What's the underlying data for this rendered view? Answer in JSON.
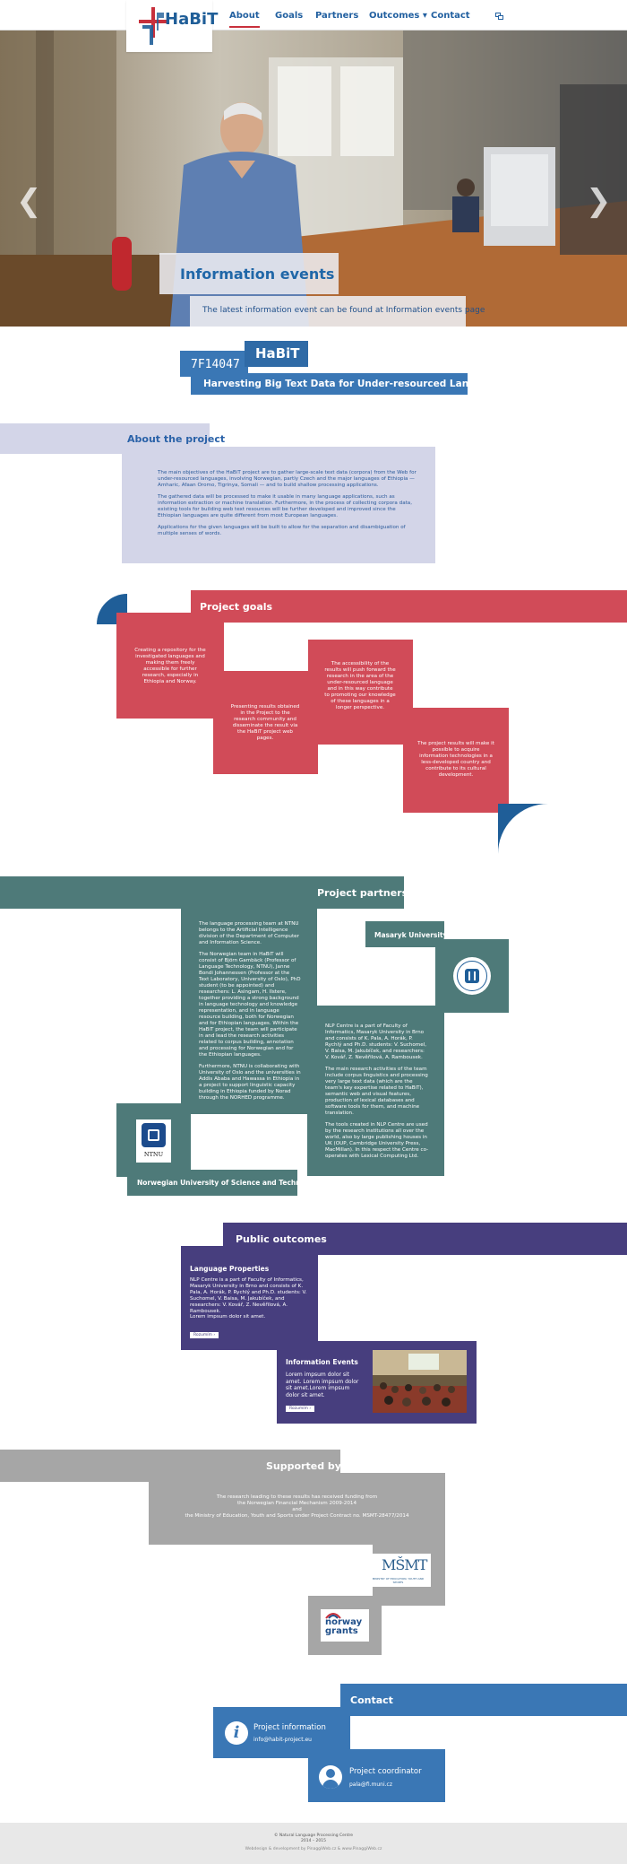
{
  "nav": {
    "brand": "HaBiT",
    "links": [
      "About",
      "Goals",
      "Partners",
      "Outcomes",
      "Contact"
    ],
    "caret": "▾",
    "lang_icon": "language-icon"
  },
  "hero": {
    "title": "Information events",
    "subtitle": "The latest information event can be found at Information events page",
    "prev": "❮",
    "next": "❯"
  },
  "project": {
    "code": "7F14047",
    "name": "HaBiT",
    "tagline": "Harvesting Big Text Data for Under-resourced Languages"
  },
  "about": {
    "heading": "About the project",
    "p1": "The main objectives of the HaBiT project are to gather large-scale text data (corpora) from the Web for under-resourced languages, involving Norwegian, partly Czech and the major languages of Ethiopia — Amharic, Afaan Oromo, Tigrinya, Somali — and to build shallow processing applications.",
    "p2": "The gathered data will be processed to make it usable in many language applications, such as information extraction or machine translation. Furthermore, in the process of collecting corpora data, existing tools for building web text resources will be further developed and improved since the Ethiopian languages are quite different from most European languages.",
    "p3": "Applications for the given languages will be built to allow for the separation and disambiguation of multiple senses of words."
  },
  "goals": {
    "heading": "Project goals",
    "g1": "Creating a repository for the investigated languages and making them freely accessible for further research, especially in Ethiopia and Norway.",
    "g2": "Presenting results obtained in the Project to the research community and disseminate the result via the HaBiT project web pages.",
    "g3": "The accessibility of the results will push forward the research in the area of the under-resourced language and in this way contribute to promoting our knowledge of these languages in a longer perspective.",
    "g4": "The project results will make it possible to acquire information technologies in a less-developed country and contribute to its cultural development."
  },
  "partners": {
    "heading": "Project partners",
    "ntnu_p1": "The language processing team at NTNU belongs to the Artificial Intelligence division of the Department of Computer and Information Science.",
    "ntnu_p2": "The Norwegian team in HaBiT will consist of Björn Gambäck (Professor of Language Technology, NTNU), Janne Bondi Johannessen (Professor at the Text Laboratory, University of Oslo), PhD student (to be appointed) and researchers: L. Asingam, H. Ilstere, together providing a strong background in language technology and knowledge representation, and in language resource building, both for Norwegian and for Ethiopian languages. Within the HaBiT project, the team will participate in and lead the research activities related to corpus building, annotation and processing for Norwegian and for the Ethiopian languages.",
    "ntnu_p3": "Furthermore, NTNU is collaborating with University of Oslo and the universities in Addis Ababa and Hawassa in Ethiopia in a project to support linguistic capacity building in Ethiopia funded by Norad through the NORHED programme.",
    "ntnu_logo": "NTNU",
    "ntnu_name": "Norwegian University of Science and Technology",
    "mu_name": "Masaryk University",
    "mu_p1": "NLP Centre is a part of Faculty of Informatics, Masaryk University in Brno and consists of K. Pala, A. Horák, P. Rychlý and Ph.D. students: V. Suchomel, V. Baisa, M. Jakubíček, and researchers: V. Kovář, Z. Nevěřilová, A. Rambousek.",
    "mu_p2": "The main research activities of the team include corpus linguistics and processing very large text data (which are the team's key expertise related to HaBiT), semantic web and visual features, production of lexical databases and software tools for them, and machine translation.",
    "mu_p3": "The tools created in NLP Centre are used by the research institutions all over the world, also by large publishing houses in UK (OUP, Cambridge University Press, MacMillan). In this respect the Centre co-operates with Lexical Computing Ltd."
  },
  "outcomes": {
    "heading": "Public outcomes",
    "lp_title": "Language Properties",
    "lp_text": "NLP Centre is a part of Faculty of Informatics, Masaryk University in Brno and consists of K. Pala, A. Horák, P. Rychlý and Ph.D. students: V. Suchomel, V. Baisa, M. Jakubíček, and researchers: V. Kovář, Z. Nevěřilová, A. Rambousek.",
    "lp_text2": "Lorem impsum dolor sit amet.",
    "lp_btn": "Rozumím ›",
    "ie_title": "Information Events",
    "ie_text": "Lorem impsum dolor sit amet. Lorem impsum dolor sit amet.Lorem impsum dolor sit amet.",
    "ie_btn": "Rozumím ›"
  },
  "support": {
    "heading": "Supported by",
    "text1": "The research leading to these results has received funding from",
    "text2": "the Norwegian Financial Mechanism 2009-2014",
    "text3": "and",
    "text4": "the Ministry of Education, Youth and Sports under Project Contract no. MSMT-28477/2014",
    "msmt_sub": "MINISTRY OF EDUCATION, YOUTH AND SPORTS",
    "norway1": "norway",
    "norway2": "grants"
  },
  "contact": {
    "heading": "Contact",
    "c1_title": "Project information",
    "c1_email": "info@habit-project.eu",
    "c2_title": "Project coordinator",
    "c2_email": "pala@fi.muni.cz"
  },
  "footer": {
    "line1": "© Natural Language Processing Centre",
    "line2": "2014 – 2015",
    "line3": "Webdesign & development by PinaggiWeb.cz & www.PinaggiWeb.cz"
  },
  "colors": {
    "blue": "#3a77b5",
    "red": "#d14b58",
    "teal": "#4e7a79",
    "purple": "#473e7e",
    "gray": "#a6a6a6",
    "lav": "#d3d5e8"
  }
}
